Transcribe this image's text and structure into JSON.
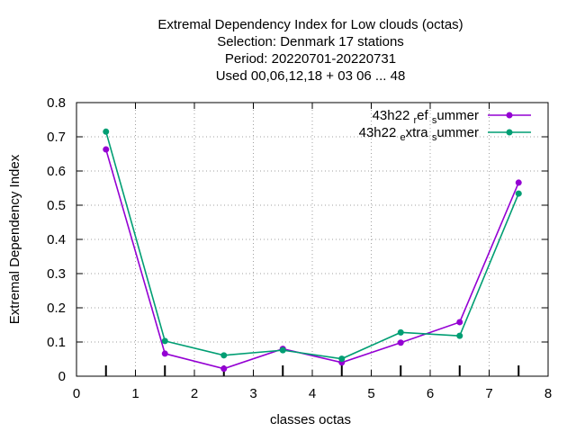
{
  "chart_data": {
    "type": "line",
    "title_lines": [
      "Extremal Dependency Index  for Low clouds (octas)",
      "Selection: Denmark     17 stations",
      "Period: 20220701-20220731",
      "Used  00,06,12,18  + 03 06 ... 48"
    ],
    "xlabel": "classes octas",
    "ylabel": "Extremal Dependency Index",
    "xlim": [
      0,
      8
    ],
    "ylim": [
      0,
      0.8
    ],
    "xticks": [
      "0",
      "1",
      "2",
      "3",
      "4",
      "5",
      "6",
      "7",
      "8"
    ],
    "yticks": [
      "0",
      "0.1",
      "0.2",
      "0.3",
      "0.4",
      "0.5",
      "0.6",
      "0.7",
      "0.8"
    ],
    "grid": true,
    "legend_position": "top-right",
    "series": [
      {
        "name": "43h22_ref_summer",
        "legend_parts": [
          "43h22 ",
          "r",
          "ef ",
          "s",
          "ummer"
        ],
        "color": "#9400d3",
        "x": [
          0.5,
          1.5,
          2.5,
          3.5,
          4.5,
          5.5,
          6.5,
          7.5
        ],
        "values": [
          0.663,
          0.066,
          0.022,
          0.08,
          0.04,
          0.098,
          0.158,
          0.566
        ]
      },
      {
        "name": "43h22_extra_summer",
        "legend_parts": [
          "43h22 ",
          "e",
          "xtra ",
          "s",
          "ummer"
        ],
        "color": "#009e73",
        "x": [
          0.5,
          1.5,
          2.5,
          3.5,
          4.5,
          5.5,
          6.5,
          7.5
        ],
        "values": [
          0.715,
          0.103,
          0.061,
          0.076,
          0.051,
          0.128,
          0.118,
          0.534
        ]
      }
    ]
  }
}
